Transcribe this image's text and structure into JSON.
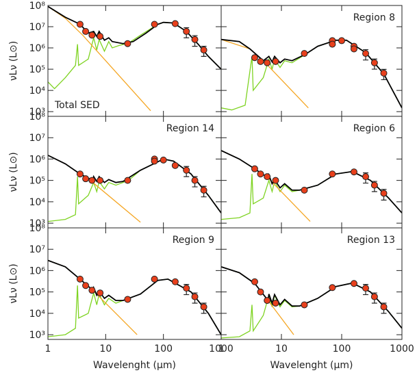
{
  "chart_data": [
    {
      "type": "sed",
      "title": "Total SED",
      "title_corner": "bottom-left",
      "ylabel": "νLν (L⊙)",
      "xlog": true,
      "ylog": true,
      "xlim": [
        1,
        1000
      ],
      "ylim": [
        600,
        100000000
      ],
      "xticks": [
        1,
        10,
        100,
        1000
      ],
      "yticks": [
        {
          "value": 1000,
          "label": "10³"
        },
        {
          "value": 10000,
          "label": "10⁴"
        },
        {
          "value": 100000,
          "label": "10⁵"
        },
        {
          "value": 1000000,
          "label": "10⁶"
        },
        {
          "value": 10000000,
          "label": "10⁷"
        },
        {
          "value": 100000000,
          "label": "10⁸"
        }
      ],
      "series": [
        {
          "color": "#7ed321",
          "x": [
            1,
            1.3,
            2,
            3,
            3.25,
            3.4,
            5,
            6.2,
            7,
            7.7,
            9.5,
            11.3,
            13,
            17,
            25,
            40,
            80,
            100,
            150,
            250,
            400,
            600,
            1000
          ],
          "values": [
            25000,
            12000,
            40000,
            150000,
            1500000,
            150000,
            300000,
            3000000,
            800000,
            2500000,
            700000,
            2000000,
            1000000,
            1300000,
            1700000,
            4000000,
            13000000,
            16000000,
            15000000,
            6000000,
            1500000,
            400000,
            100000
          ]
        },
        {
          "color": "#f5a623",
          "x": [
            1,
            2,
            4,
            10,
            60
          ],
          "values": [
            90000000,
            25000000,
            4000000,
            250000,
            1100
          ]
        },
        {
          "color": "#000000",
          "x": [
            1,
            2,
            3.6,
            5,
            6.2,
            7,
            7.7,
            9.5,
            11.3,
            13,
            20,
            30,
            50,
            80,
            100,
            150,
            250,
            400,
            600,
            1000
          ],
          "values": [
            90000000,
            28000000,
            13000000,
            5000000,
            6000000,
            3500000,
            6000000,
            2300000,
            3000000,
            2000000,
            1600000,
            2000000,
            5000000,
            13000000,
            16000000,
            15000000,
            6000000,
            1500000,
            400000,
            100000
          ]
        }
      ],
      "points": {
        "color": "#e8401c",
        "x": [
          3.6,
          4.5,
          5.8,
          8,
          24,
          70,
          160,
          250,
          350,
          500
        ],
        "values": [
          13000000,
          6000000,
          4000000,
          3500000,
          1600000,
          13000000,
          14000000,
          6000000,
          2500000,
          800000
        ],
        "errors": [
          null,
          null,
          null,
          null,
          null,
          null,
          null,
          3000000,
          1300000,
          400000
        ]
      }
    },
    {
      "type": "sed",
      "title": "Region 8",
      "title_corner": "top-right",
      "xlog": true,
      "ylog": true,
      "xlim": [
        1,
        1000
      ],
      "ylim": [
        600,
        100000000
      ],
      "xticks": [
        1,
        10,
        100,
        1000
      ],
      "yticks": [
        1000,
        10000,
        100000,
        1000000,
        10000000,
        100000000
      ],
      "series": [
        {
          "color": "#7ed321",
          "x": [
            1,
            1.5,
            2.5,
            3.25,
            3.4,
            5,
            6.2,
            7,
            7.7,
            9.5,
            11.3,
            15,
            25,
            40,
            80,
            120,
            250,
            500,
            1000
          ],
          "values": [
            1500,
            1200,
            2000,
            400000,
            10000,
            40000,
            300000,
            100000,
            300000,
            120000,
            250000,
            200000,
            500000,
            1200000,
            2300000,
            2300000,
            600000,
            60000,
            1500
          ]
        },
        {
          "color": "#f5a623",
          "x": [
            1,
            3,
            5,
            28
          ],
          "values": [
            2500000,
            900000,
            250000,
            1500
          ]
        },
        {
          "color": "#000000",
          "x": [
            1,
            2,
            3,
            5,
            6.2,
            7,
            7.7,
            9.5,
            11.3,
            15,
            25,
            40,
            80,
            120,
            250,
            500,
            1000
          ],
          "values": [
            2500000,
            2000000,
            900000,
            250000,
            400000,
            220000,
            400000,
            200000,
            300000,
            250000,
            500000,
            1200000,
            2300000,
            2300000,
            600000,
            60000,
            1500
          ]
        }
      ],
      "points": {
        "color": "#e8401c",
        "x": [
          3.6,
          4.5,
          5.8,
          8,
          24,
          70,
          70,
          100,
          160,
          160,
          250,
          350,
          500
        ],
        "values": [
          350000,
          230000,
          200000,
          230000,
          550000,
          2200000,
          1500000,
          2200000,
          1200000,
          900000,
          550000,
          200000,
          65000
        ],
        "errors": [
          null,
          null,
          null,
          null,
          null,
          null,
          null,
          null,
          null,
          null,
          280000,
          100000,
          33000
        ]
      }
    },
    {
      "type": "sed",
      "title": "Region 14",
      "title_corner": "top-right",
      "ylabel": "νLν (L⊙)",
      "xlog": true,
      "ylog": true,
      "xlim": [
        1,
        1000
      ],
      "ylim": [
        600,
        100000000
      ],
      "xticks": [
        1,
        10,
        100,
        1000
      ],
      "yticks": [
        {
          "value": 1000,
          "label": "10³"
        },
        {
          "value": 10000,
          "label": "10⁴"
        },
        {
          "value": 100000,
          "label": "10⁵"
        },
        {
          "value": 1000000,
          "label": "10⁶"
        },
        {
          "value": 10000000,
          "label": "10⁷"
        },
        {
          "value": 100000000,
          "label": "10⁸"
        }
      ],
      "series": [
        {
          "color": "#7ed321",
          "x": [
            1,
            2,
            3,
            3.25,
            3.4,
            5,
            6.2,
            7,
            7.7,
            9.5,
            11.3,
            15,
            25,
            40,
            100,
            150,
            300,
            600,
            1000
          ],
          "values": [
            1200,
            1500,
            2500,
            150000,
            8000,
            20000,
            80000,
            30000,
            90000,
            40000,
            80000,
            60000,
            100000,
            300000,
            1000000,
            800000,
            200000,
            20000,
            3000
          ]
        },
        {
          "color": "#f5a623",
          "x": [
            1,
            2,
            3.6,
            6,
            40
          ],
          "values": [
            1500000,
            600000,
            200000,
            80000,
            1100
          ]
        },
        {
          "color": "#000000",
          "x": [
            1,
            2,
            3.6,
            6,
            6.2,
            7,
            7.7,
            9.5,
            11.3,
            15,
            20,
            40,
            100,
            150,
            300,
            600,
            1000
          ],
          "values": [
            1500000,
            600000,
            200000,
            100000,
            150000,
            90000,
            150000,
            80000,
            110000,
            80000,
            90000,
            300000,
            1000000,
            800000,
            200000,
            20000,
            3000
          ]
        }
      ],
      "points": {
        "color": "#e8401c",
        "x": [
          3.6,
          4.5,
          5.8,
          8,
          24,
          70,
          70,
          100,
          160,
          250,
          350,
          500
        ],
        "values": [
          200000,
          120000,
          100000,
          100000,
          100000,
          1000000,
          800000,
          900000,
          500000,
          300000,
          100000,
          35000
        ],
        "errors": [
          null,
          null,
          null,
          null,
          null,
          null,
          null,
          null,
          null,
          150000,
          50000,
          18000
        ]
      }
    },
    {
      "type": "sed",
      "title": "Region 6",
      "title_corner": "top-right",
      "xlog": true,
      "ylog": true,
      "xlim": [
        1,
        1000
      ],
      "ylim": [
        600,
        100000000
      ],
      "xticks": [
        1,
        10,
        100,
        1000
      ],
      "yticks": [
        1000,
        10000,
        100000,
        1000000,
        10000000,
        100000000
      ],
      "series": [
        {
          "color": "#7ed321",
          "x": [
            1,
            2,
            3,
            3.25,
            3.4,
            5,
            6.2,
            7,
            7.7,
            9.5,
            11.3,
            15,
            20,
            40,
            80,
            150,
            300,
            600,
            1000
          ],
          "values": [
            1500,
            1800,
            3000,
            200000,
            8000,
            15000,
            100000,
            30000,
            90000,
            30000,
            60000,
            30000,
            35000,
            60000,
            200000,
            260000,
            100000,
            15000,
            3000
          ]
        },
        {
          "color": "#f5a623",
          "x": [
            1,
            2,
            3.6,
            6,
            30
          ],
          "values": [
            2500000,
            1000000,
            350000,
            130000,
            1200
          ]
        },
        {
          "color": "#000000",
          "x": [
            1,
            2,
            3.6,
            6,
            6.2,
            7,
            7.7,
            9.5,
            11.3,
            15,
            20,
            40,
            80,
            150,
            300,
            600,
            1000
          ],
          "values": [
            2500000,
            1000000,
            350000,
            130000,
            180000,
            70000,
            110000,
            45000,
            70000,
            35000,
            35000,
            60000,
            200000,
            260000,
            100000,
            15000,
            3000
          ]
        }
      ],
      "points": {
        "color": "#e8401c",
        "x": [
          3.6,
          4.5,
          5.8,
          8,
          24,
          70,
          160,
          250,
          350,
          500
        ],
        "values": [
          350000,
          200000,
          150000,
          100000,
          35000,
          200000,
          250000,
          150000,
          60000,
          25000
        ],
        "errors": [
          null,
          null,
          null,
          null,
          null,
          null,
          null,
          75000,
          30000,
          13000
        ]
      }
    },
    {
      "type": "sed",
      "title": "Region 9",
      "title_corner": "top-right",
      "ylabel": "νLν (L⊙)",
      "xlabel": "Wavelenght (μm)",
      "xlog": true,
      "ylog": true,
      "xlim": [
        1,
        1000
      ],
      "ylim": [
        600,
        100000000
      ],
      "xticks": [
        1,
        10,
        100,
        1000
      ],
      "yticks": [
        {
          "value": 1000,
          "label": "10³"
        },
        {
          "value": 10000,
          "label": "10⁴"
        },
        {
          "value": 100000,
          "label": "10⁵"
        },
        {
          "value": 1000000,
          "label": "10⁶"
        },
        {
          "value": 10000000,
          "label": "10⁷"
        },
        {
          "value": 100000000,
          "label": "10⁸"
        }
      ],
      "series": [
        {
          "color": "#7ed321",
          "x": [
            1,
            2,
            3,
            3.25,
            3.4,
            5,
            6.2,
            7,
            7.7,
            9.5,
            11.3,
            15,
            20,
            40,
            80,
            120,
            300,
            600,
            1000
          ],
          "values": [
            800,
            1000,
            2000,
            200000,
            6000,
            10000,
            90000,
            25000,
            80000,
            25000,
            50000,
            30000,
            40000,
            80000,
            350000,
            400000,
            100000,
            10000,
            1000
          ]
        },
        {
          "color": "#f5a623",
          "x": [
            1,
            2,
            3.6,
            6,
            35
          ],
          "values": [
            3000000,
            1500000,
            400000,
            120000,
            1000
          ]
        },
        {
          "color": "#000000",
          "x": [
            1,
            2,
            3.6,
            6,
            6.2,
            7,
            7.7,
            9.5,
            11.3,
            15,
            20,
            40,
            80,
            120,
            300,
            600,
            1000
          ],
          "values": [
            3000000,
            1500000,
            400000,
            120000,
            160000,
            70000,
            110000,
            50000,
            70000,
            40000,
            40000,
            80000,
            350000,
            400000,
            100000,
            10000,
            1000
          ]
        }
      ],
      "points": {
        "color": "#e8401c",
        "x": [
          3.6,
          4.5,
          5.8,
          8,
          24,
          70,
          160,
          250,
          350,
          500
        ],
        "values": [
          400000,
          200000,
          120000,
          90000,
          45000,
          400000,
          300000,
          150000,
          60000,
          20000
        ],
        "errors": [
          null,
          null,
          null,
          null,
          null,
          null,
          null,
          75000,
          30000,
          10000
        ]
      }
    },
    {
      "type": "sed",
      "title": "Region 13",
      "title_corner": "top-right",
      "xlabel": "Wavelenght (μm)",
      "xlog": true,
      "ylog": true,
      "xlim": [
        1,
        1000
      ],
      "ylim": [
        600,
        100000000
      ],
      "xticks": [
        1,
        10,
        100,
        1000
      ],
      "yticks": [
        1000,
        10000,
        100000,
        1000000,
        10000000,
        100000000
      ],
      "series": [
        {
          "color": "#7ed321",
          "x": [
            1,
            2,
            3,
            3.25,
            3.4,
            5,
            6.2,
            7,
            7.7,
            9.5,
            11.3,
            15,
            20,
            40,
            80,
            150,
            300,
            600,
            1000
          ],
          "values": [
            700,
            800,
            1500,
            25000,
            1500,
            8000,
            70000,
            20000,
            70000,
            20000,
            40000,
            20000,
            22000,
            50000,
            180000,
            260000,
            100000,
            12000,
            2000
          ]
        },
        {
          "color": "#f5a623",
          "x": [
            1,
            2,
            3.6,
            6,
            16
          ],
          "values": [
            1500000,
            800000,
            250000,
            40000,
            1000
          ]
        },
        {
          "color": "#000000",
          "x": [
            1,
            2,
            3.6,
            6,
            6.2,
            7,
            7.7,
            9.5,
            11.3,
            15,
            20,
            40,
            80,
            150,
            300,
            600,
            1000
          ],
          "values": [
            1500000,
            800000,
            250000,
            40000,
            80000,
            30000,
            75000,
            25000,
            45000,
            22000,
            22000,
            50000,
            180000,
            260000,
            100000,
            12000,
            2000
          ]
        }
      ],
      "points": {
        "color": "#e8401c",
        "x": [
          3.6,
          4.5,
          5.8,
          8,
          24,
          70,
          160,
          250,
          350,
          500
        ],
        "values": [
          300000,
          100000,
          40000,
          30000,
          25000,
          160000,
          250000,
          150000,
          60000,
          20000
        ],
        "errors": [
          null,
          null,
          null,
          null,
          null,
          null,
          null,
          75000,
          30000,
          10000
        ]
      }
    }
  ]
}
